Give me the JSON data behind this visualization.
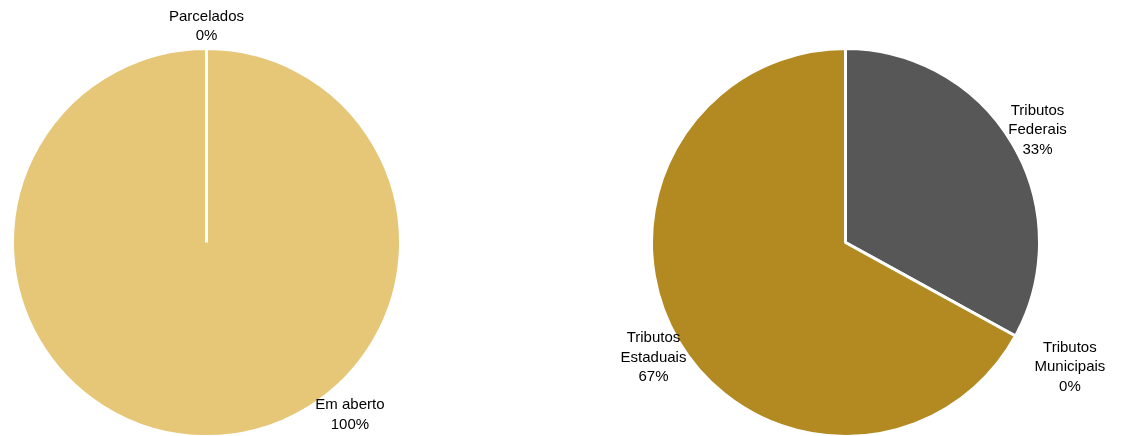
{
  "chart_data": [
    {
      "type": "pie",
      "categories": [
        "Em aberto",
        "Parcelados"
      ],
      "values": [
        100,
        0
      ],
      "colors": [
        "#e6c677",
        "#e6c677"
      ],
      "value_labels": [
        "100%",
        "0%"
      ],
      "legend": false
    },
    {
      "type": "pie",
      "categories": [
        "Tributos Federais",
        "Tributos Municipais",
        "Tributos Estaduais"
      ],
      "values": [
        33,
        0,
        67
      ],
      "colors": [
        "#575757",
        "#a6a6a6",
        "#b38a22"
      ],
      "value_labels": [
        "33%",
        "0%",
        "67%"
      ],
      "legend": false
    }
  ]
}
